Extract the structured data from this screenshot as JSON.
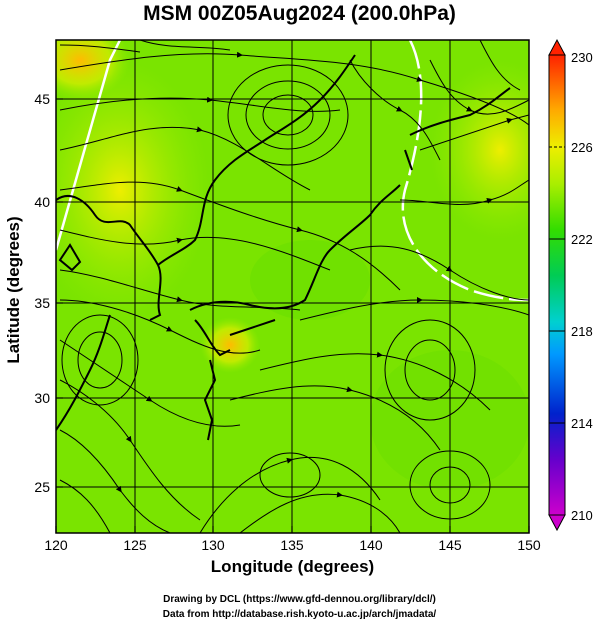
{
  "title": "MSM 00Z05Aug2024 (200.0hPa)",
  "xlabel": "Longitude (degrees)",
  "ylabel": "Latitude  (degrees)",
  "x_ticks": [
    "120",
    "125",
    "130",
    "135",
    "140",
    "145",
    "150"
  ],
  "y_ticks": [
    "25",
    "30",
    "35",
    "40",
    "45"
  ],
  "colorbar": {
    "min_label": "210",
    "max_label": "230",
    "tick_labels": [
      "214",
      "218",
      "222",
      "226"
    ],
    "colors": [
      "#cc00cc",
      "#3300cc",
      "#0066ff",
      "#00ccff",
      "#00e0a0",
      "#22dd22",
      "#88ee00",
      "#ccee00",
      "#ffcc00",
      "#ff8800",
      "#ff3300"
    ]
  },
  "credits": {
    "line1": "Drawing by DCL (https://www.gfd-dennou.org/library/dcl/)",
    "line2": "Data from http://database.rish.kyoto-u.ac.jp/arch/jmadata/"
  },
  "chart_data": {
    "type": "heatmap",
    "title": "MSM 00Z05Aug2024 (200.0hPa)",
    "xlabel": "Longitude (degrees)",
    "ylabel": "Latitude  (degrees)",
    "xlim": [
      120,
      150
    ],
    "ylim": [
      22.5,
      47.5
    ],
    "x_ticks": [
      120,
      125,
      130,
      135,
      140,
      145,
      150
    ],
    "y_ticks": [
      25,
      30,
      35,
      40,
      45
    ],
    "colorbar_range": [
      210,
      230
    ],
    "colorbar_ticks": [
      214,
      218,
      222,
      226
    ],
    "field_color": "#66e000",
    "warm_patch_color": "#ffcc00",
    "grid": true
  }
}
